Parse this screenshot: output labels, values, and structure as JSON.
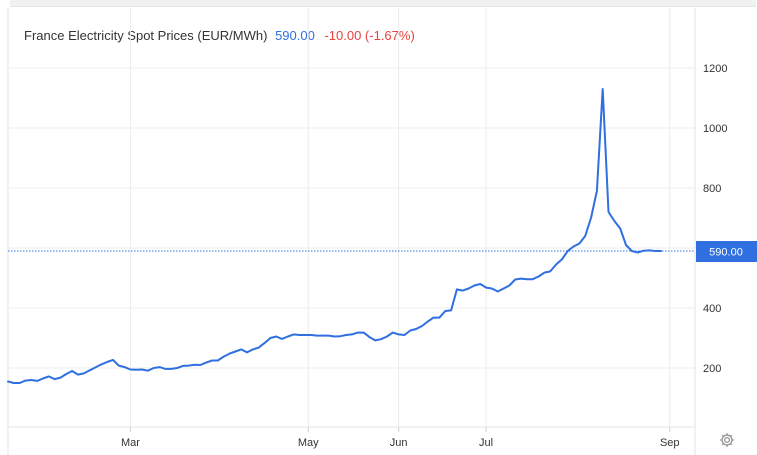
{
  "header": {
    "title": "France Electricity Spot Prices (EUR/MWh)",
    "last_value": "590.00",
    "change": "-10.00 (-1.67%)"
  },
  "colors": {
    "line": "#2f6fe0",
    "last_badge": "#2f6fe0",
    "negative": "#e8423f",
    "grid": "#ececec"
  },
  "icons": {
    "settings": "gear-icon"
  },
  "chart_data": {
    "type": "line",
    "title": "France Electricity Spot Prices (EUR/MWh)",
    "ylim": [
      0,
      1340
    ],
    "y_ticks": [
      200,
      400,
      600,
      800,
      1000,
      1200
    ],
    "x_ticks": [
      {
        "label": "Mar",
        "x": 42
      },
      {
        "label": "May",
        "x": 103
      },
      {
        "label": "Jun",
        "x": 134
      },
      {
        "label": "Jul",
        "x": 164
      },
      {
        "label": "Sep",
        "x": 227
      }
    ],
    "grid": true,
    "last_label": "590.00",
    "last_value": 590,
    "x": [
      0,
      2,
      4,
      6,
      8,
      10,
      12,
      14,
      16,
      18,
      20,
      22,
      24,
      26,
      28,
      30,
      32,
      34,
      36,
      38,
      40,
      42,
      44,
      46,
      48,
      50,
      52,
      54,
      56,
      58,
      60,
      62,
      64,
      66,
      68,
      70,
      72,
      74,
      76,
      78,
      80,
      82,
      84,
      86,
      88,
      90,
      92,
      94,
      96,
      98,
      100,
      102,
      104,
      106,
      108,
      110,
      112,
      114,
      116,
      118,
      120,
      122,
      124,
      126,
      128,
      130,
      132,
      134,
      136,
      138,
      140,
      142,
      144,
      146,
      148,
      150,
      152,
      154,
      156,
      158,
      160,
      162,
      164,
      166,
      168,
      170,
      172,
      174,
      176,
      178,
      180,
      182,
      184,
      186,
      188,
      190,
      192,
      194,
      196,
      198,
      200,
      202,
      204,
      206,
      208,
      210,
      212,
      214,
      216,
      218,
      220,
      222,
      224
    ],
    "values": [
      155,
      150,
      150,
      158,
      160,
      157,
      165,
      172,
      163,
      168,
      180,
      190,
      178,
      182,
      192,
      202,
      212,
      220,
      227,
      208,
      203,
      195,
      194,
      195,
      191,
      200,
      203,
      197,
      197,
      200,
      207,
      208,
      211,
      210,
      218,
      225,
      225,
      238,
      248,
      255,
      262,
      252,
      262,
      268,
      283,
      300,
      305,
      297,
      305,
      312,
      310,
      310,
      310,
      308,
      308,
      308,
      305,
      306,
      310,
      312,
      318,
      318,
      303,
      292,
      296,
      305,
      318,
      312,
      310,
      325,
      330,
      340,
      355,
      368,
      368,
      390,
      392,
      462,
      458,
      465,
      475,
      480,
      468,
      465,
      455,
      465,
      475,
      495,
      498,
      496,
      496,
      505,
      518,
      522,
      545,
      562,
      590,
      605,
      615,
      640,
      700,
      790,
      1130,
      720,
      690,
      665,
      610,
      590,
      585,
      591,
      592,
      590,
      590
    ],
    "annotations": []
  }
}
